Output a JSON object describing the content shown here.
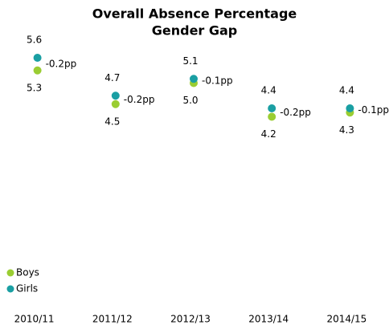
{
  "chart_data": {
    "type": "dot",
    "title": [
      "Overall Absence Percentage",
      "Gender Gap"
    ],
    "categories": [
      "2010/11",
      "2011/12",
      "2012/13",
      "2013/14",
      "2014/15"
    ],
    "series": [
      {
        "name": "Boys",
        "color": "#9acd32",
        "values": [
          5.3,
          4.5,
          5.0,
          4.2,
          4.3
        ],
        "value_labels": [
          "5.3",
          "4.5",
          "5.0",
          "4.2",
          "4.3"
        ]
      },
      {
        "name": "Girls",
        "color": "#1a9fa3",
        "values": [
          5.6,
          4.7,
          5.1,
          4.4,
          4.4
        ]
      }
    ],
    "annotations": [
      "-0.2pp",
      "-0.2pp",
      "-0.1pp",
      "-0.2pp",
      "-0.1pp"
    ],
    "ylim": [
      0,
      6
    ],
    "legend": "bottom-left"
  }
}
